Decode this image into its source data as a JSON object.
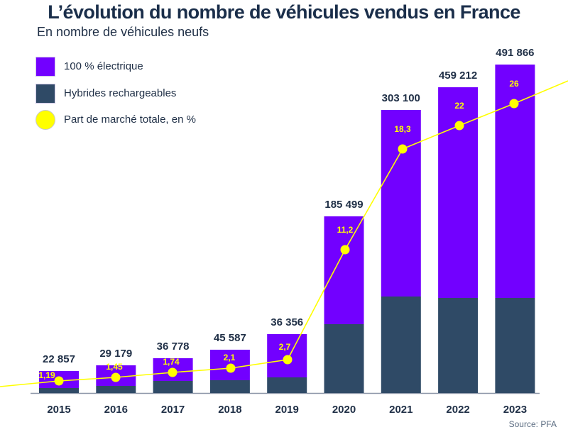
{
  "header": {
    "title": "L’évolution du nombre de véhicules vendus en France",
    "subtitle": "En nombre de véhicules neufs"
  },
  "legend": [
    {
      "label": "100 % électrique",
      "color": "#7200ff",
      "shape": "square"
    },
    {
      "label": "Hybrides rechargeables",
      "color": "#2f4a66",
      "shape": "square"
    },
    {
      "label": "Part de marché totale, en %",
      "color": "#ffff00",
      "shape": "circle"
    }
  ],
  "footer": {
    "source": "Source: PFA"
  },
  "chart_data": {
    "type": "bar",
    "subtype": "stacked bar with line overlay",
    "title": "L’évolution du nombre de véhicules vendus en France",
    "subtitle": "En nombre de véhicules neufs",
    "xlabel": "",
    "ylabel": "",
    "grid": false,
    "legend_position": "top-left",
    "categories": [
      "2015",
      "2016",
      "2017",
      "2018",
      "2019",
      "2020",
      "2021",
      "2022",
      "2023"
    ],
    "totals": [
      22857,
      29179,
      36778,
      45587,
      36356,
      185499,
      303100,
      459212,
      491866
    ],
    "total_labels": [
      "22 857",
      "29 179",
      "36 778",
      "45 587",
      "36 356",
      "185 499",
      "303 100",
      "459 212",
      "491 866"
    ],
    "series": [
      {
        "name": "Hybrides rechargeables",
        "color": "#2f4a66",
        "share_of_bar_estimated": [
          0.23,
          0.26,
          0.35,
          0.3,
          0.27,
          0.39,
          0.34,
          0.31,
          0.29
        ]
      },
      {
        "name": "100 % électrique",
        "color": "#7200ff",
        "share_of_bar_estimated": [
          0.77,
          0.74,
          0.65,
          0.7,
          0.73,
          0.61,
          0.66,
          0.69,
          0.71
        ]
      },
      {
        "name": "Part de marché totale, en %",
        "type": "line",
        "color": "#ffff00",
        "values": [
          1.19,
          1.45,
          1.74,
          2.1,
          2.7,
          11.2,
          18.3,
          22,
          26
        ],
        "labels": [
          "1,19",
          "1,45",
          "1,74",
          "2,1",
          "2,7",
          "11,2",
          "18,3",
          "22",
          "26"
        ]
      }
    ],
    "source": "Source: PFA"
  }
}
